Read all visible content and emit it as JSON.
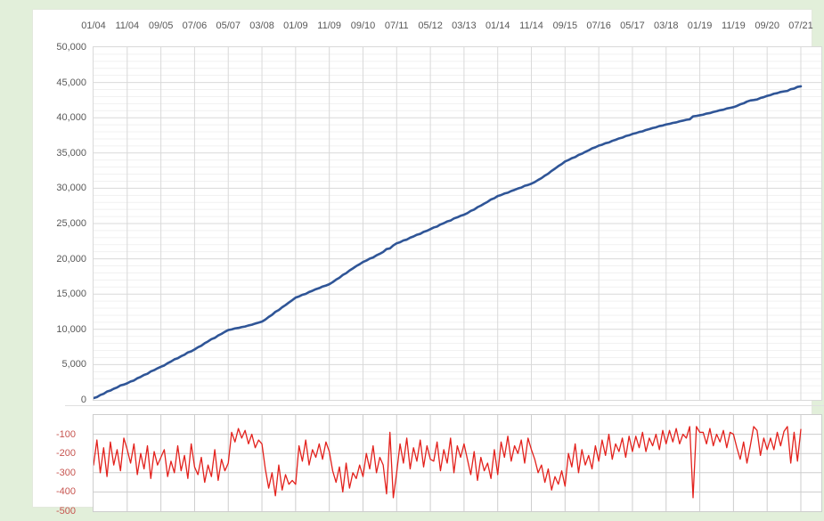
{
  "page": {
    "background_color": "#e2efda",
    "panel_color": "#ffffff",
    "axis_text_color": "#595959"
  },
  "chart_data": [
    {
      "id": "cumulative-total",
      "type": "line",
      "title": "",
      "xlabel": "",
      "ylabel": "",
      "legend": "none",
      "grid": "on",
      "line_color": "#2f5597",
      "x_axis_position": "top",
      "x_tick_labels": [
        "01/04",
        "11/04",
        "09/05",
        "07/06",
        "05/07",
        "03/08",
        "01/09",
        "11/09",
        "09/10",
        "07/11",
        "05/12",
        "03/13",
        "01/14",
        "11/14",
        "09/15",
        "07/16",
        "05/17",
        "03/18",
        "01/19",
        "11/19",
        "09/20",
        "07/21"
      ],
      "x_tick_interval_months": 10,
      "y_tick_labels": [
        "50,000",
        "45,000",
        "40,000",
        "35,000",
        "30,000",
        "25,000",
        "20,000",
        "15,000",
        "10,000",
        "5,000",
        "0"
      ],
      "ylim": [
        0,
        50000
      ],
      "y_major_step": 5000,
      "y_minor_step": 1000,
      "derivation": "running cumulative sum of the absolute monthly values of the second chart; rises from about 260 in 01/04 to about 44,450 in 07/21"
    },
    {
      "id": "monthly-change",
      "type": "line",
      "title": "",
      "xlabel": "",
      "ylabel": "",
      "legend": "none",
      "grid": "on",
      "line_color": "#e3211c",
      "axis_label_color": "#c75550",
      "x_tick_labels_hidden": true,
      "y_tick_labels": [
        "-100",
        "-200",
        "-300",
        "-400",
        "-500"
      ],
      "ylim": [
        -500,
        0
      ],
      "y_major_step": 100,
      "values": [
        -260,
        -130,
        -300,
        -170,
        -320,
        -140,
        -260,
        -180,
        -290,
        -120,
        -180,
        -250,
        -150,
        -310,
        -200,
        -280,
        -160,
        -330,
        -190,
        -260,
        -220,
        -180,
        -320,
        -240,
        -300,
        -160,
        -290,
        -210,
        -330,
        -150,
        -270,
        -310,
        -220,
        -350,
        -260,
        -320,
        -180,
        -340,
        -230,
        -290,
        -250,
        -90,
        -140,
        -70,
        -120,
        -80,
        -150,
        -100,
        -170,
        -130,
        -150,
        -280,
        -380,
        -300,
        -420,
        -260,
        -390,
        -310,
        -360,
        -340,
        -360,
        -160,
        -240,
        -130,
        -260,
        -180,
        -220,
        -150,
        -230,
        -140,
        -190,
        -290,
        -350,
        -270,
        -400,
        -250,
        -380,
        -300,
        -330,
        -260,
        -320,
        -200,
        -280,
        -160,
        -300,
        -220,
        -260,
        -410,
        -90,
        -430,
        -300,
        -150,
        -250,
        -120,
        -280,
        -170,
        -240,
        -130,
        -270,
        -160,
        -230,
        -240,
        -140,
        -290,
        -180,
        -250,
        -120,
        -300,
        -160,
        -220,
        -150,
        -230,
        -310,
        -190,
        -340,
        -220,
        -290,
        -250,
        -330,
        -180,
        -310,
        -140,
        -220,
        -110,
        -240,
        -160,
        -200,
        -130,
        -250,
        -120,
        -180,
        -230,
        -300,
        -260,
        -350,
        -280,
        -390,
        -320,
        -360,
        -290,
        -370,
        -200,
        -270,
        -150,
        -300,
        -180,
        -260,
        -210,
        -280,
        -160,
        -240,
        -130,
        -210,
        -100,
        -230,
        -150,
        -190,
        -120,
        -220,
        -110,
        -190,
        -110,
        -170,
        -90,
        -190,
        -120,
        -160,
        -100,
        -180,
        -80,
        -150,
        -80,
        -140,
        -70,
        -150,
        -100,
        -120,
        -60,
        -430,
        -60,
        -90,
        -90,
        -150,
        -70,
        -160,
        -100,
        -140,
        -80,
        -170,
        -90,
        -100,
        -170,
        -230,
        -140,
        -250,
        -160,
        -60,
        -80,
        -210,
        -120,
        -180,
        -120,
        -180,
        -90,
        -160,
        -85,
        -60,
        -250,
        -90,
        -240,
        -75
      ]
    }
  ]
}
